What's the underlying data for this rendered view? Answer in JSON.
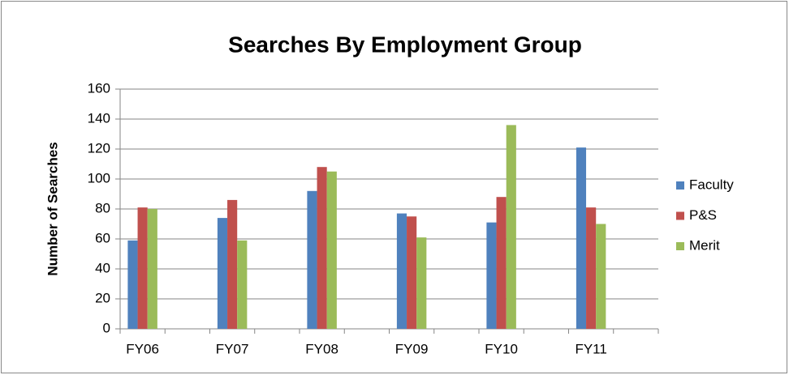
{
  "chart_data": {
    "type": "bar",
    "title": "Searches By Employment Group",
    "y_label": "Number of Searches",
    "categories": [
      "FY06",
      null,
      "FY07",
      null,
      "FY08",
      null,
      "FY09",
      null,
      "FY10",
      null,
      "FY11",
      null
    ],
    "series": [
      {
        "name": "Faculty",
        "color": "#4f81bd",
        "values": [
          59,
          null,
          74,
          null,
          92,
          null,
          77,
          null,
          71,
          null,
          121,
          null
        ]
      },
      {
        "name": "P&S",
        "color": "#c0504d",
        "values": [
          81,
          null,
          86,
          null,
          108,
          null,
          75,
          null,
          88,
          null,
          81,
          null
        ]
      },
      {
        "name": "Merit",
        "color": "#9bbb59",
        "values": [
          80,
          null,
          59,
          null,
          105,
          null,
          61,
          null,
          136,
          null,
          70,
          null
        ]
      }
    ],
    "ylim": [
      0,
      160
    ],
    "yticks": [
      0,
      20,
      40,
      60,
      80,
      100,
      120,
      140,
      160
    ],
    "grid": true,
    "legend": "right"
  }
}
